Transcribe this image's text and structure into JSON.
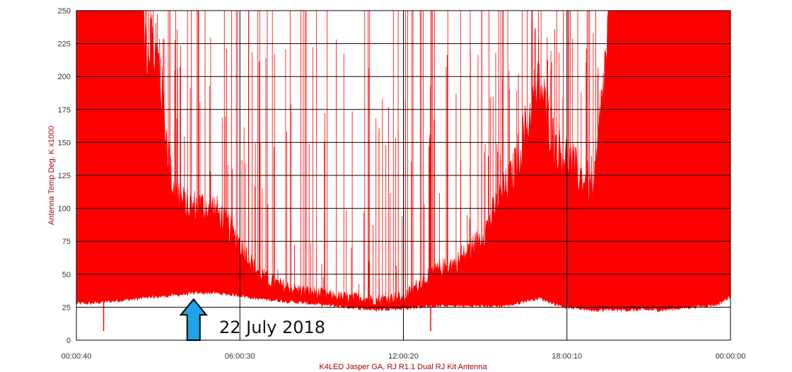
{
  "chart_data": {
    "type": "area",
    "title": "",
    "xlabel": "K4LED Jasper GA, RJ R1.1 Dual RJ Kit Antenna",
    "ylabel": "Antenna Temp Deg. K x1000",
    "ylim": [
      0,
      250
    ],
    "xlim": [
      "00:00:40",
      "00:00:00"
    ],
    "x_ticks": [
      "00:00:40",
      "06:00:30",
      "12:00:20",
      "18:00:10",
      "00:00:00"
    ],
    "y_ticks": [
      "0",
      "25",
      "50",
      "75",
      "100",
      "125",
      "150",
      "175",
      "200",
      "225",
      "250"
    ],
    "grid": true,
    "legend": "none",
    "series": [
      {
        "hours": [
          0,
          0.5,
          1,
          1.5,
          2,
          2.5,
          3,
          3.5,
          4,
          4.5,
          5,
          5.5,
          6,
          6.5,
          7,
          7.5,
          8,
          8.5,
          9,
          9.5,
          10,
          10.5,
          11,
          11.5,
          12,
          12.5,
          13,
          13.5,
          14,
          14.5,
          15,
          15.5,
          16,
          16.5,
          17,
          17.5,
          18,
          18.5,
          19,
          19.5,
          20,
          20.5,
          21,
          21.5,
          22,
          22.5,
          23,
          23.5,
          24
        ],
        "baseline": [
          28,
          28,
          29,
          30,
          31,
          32,
          33,
          34,
          35,
          36,
          36,
          35,
          34,
          32,
          31,
          30,
          29,
          28,
          27,
          26,
          25,
          24,
          23,
          24,
          24,
          25,
          26,
          26,
          26,
          26,
          26,
          26,
          27,
          30,
          32,
          28,
          25,
          24,
          23,
          23,
          23,
          23,
          23,
          23,
          24,
          25,
          26,
          27,
          33
        ],
        "envelope": [
          250,
          250,
          250,
          250,
          250,
          250,
          230,
          130,
          110,
          110,
          110,
          95,
          80,
          60,
          50,
          45,
          42,
          40,
          38,
          36,
          35,
          35,
          33,
          35,
          35,
          45,
          55,
          60,
          65,
          75,
          90,
          115,
          135,
          175,
          210,
          165,
          150,
          135,
          125,
          250,
          250,
          250,
          250,
          250,
          250,
          250,
          250,
          250,
          250
        ]
      }
    ],
    "annotations": [
      {
        "text": "22 July 2018",
        "x_hours": 4.3,
        "color": "#1ea3e6"
      }
    ],
    "colors": {
      "series": "#ff0000",
      "arrow_fill": "#1ea3e6",
      "arrow_stroke": "#000000",
      "grid": "#000000"
    }
  }
}
